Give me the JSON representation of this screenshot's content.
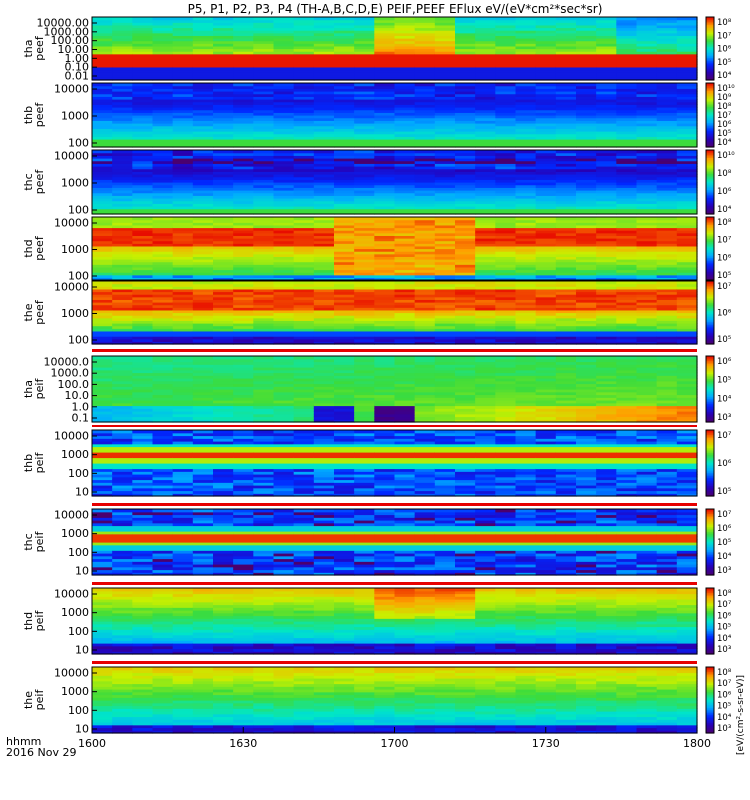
{
  "chart_data": {
    "type": "heatmap",
    "title": "P5, P1, P2, P3, P4 (TH-A,B,C,D,E) PEIF,PEEF EFlux eV/(eV*cm²*sec*sr)",
    "xlabel_line1": "hhmm",
    "xlabel_line2": "2016 Nov 29",
    "x_ticks": [
      "1600",
      "1630",
      "1700",
      "1730",
      "1800"
    ],
    "x_range": [
      1600,
      1800
    ],
    "colorbar_label": "[eV/(cm²-s-sr-eV)]",
    "colorscale": "rainbow (purple-blue-cyan-green-yellow-red)",
    "panels": [
      {
        "id": "tha-peef",
        "ylabel": [
          "tha",
          "peef"
        ],
        "yticks": [
          "10000.00",
          "1000.00",
          "100.00",
          "10.00",
          "1.00",
          "0.10",
          "0.01"
        ],
        "cbticks": [
          "10⁸",
          "10⁷",
          "10⁶",
          "10⁵",
          "10⁴"
        ],
        "pattern": "tha_e"
      },
      {
        "id": "thb-peef",
        "ylabel": [
          "thb",
          "peef"
        ],
        "yticks": [
          "10000",
          "1000",
          "100"
        ],
        "cbticks": [
          "10¹⁰",
          "10⁹",
          "10⁸",
          "10⁷",
          "10⁶",
          "10⁵",
          "10⁴"
        ],
        "pattern": "e_low"
      },
      {
        "id": "thc-peef",
        "ylabel": [
          "thc",
          "peef"
        ],
        "yticks": [
          "10000",
          "1000",
          "100"
        ],
        "cbticks": [
          "10¹⁰",
          "10⁸",
          "10⁶",
          "10⁴"
        ],
        "pattern": "e_low2"
      },
      {
        "id": "thd-peef",
        "ylabel": [
          "thd",
          "peef"
        ],
        "yticks": [
          "10000",
          "1000",
          "100"
        ],
        "cbticks": [
          "10⁸",
          "10⁷",
          "10⁶",
          "10⁵"
        ],
        "pattern": "thd_e"
      },
      {
        "id": "the-peef",
        "ylabel": [
          "the",
          "peef"
        ],
        "yticks": [
          "10000",
          "1000",
          "100"
        ],
        "cbticks": [
          "10⁷",
          "10⁶",
          "10⁵"
        ],
        "pattern": "the_e"
      },
      {
        "id": "tha-peif",
        "ylabel": [
          "tha",
          "peif"
        ],
        "yticks": [
          "10000.0",
          "1000.0",
          "100.0",
          "10.0",
          "1.0",
          "0.1"
        ],
        "cbticks": [
          "10⁶",
          "10⁵",
          "10⁴",
          "10³"
        ],
        "pattern": "tha_i"
      },
      {
        "id": "thb-peif",
        "ylabel": [
          "thb",
          "peif"
        ],
        "yticks": [
          "10000",
          "1000",
          "100",
          "10"
        ],
        "cbticks": [
          "10⁷",
          "10⁶",
          "10⁵"
        ],
        "pattern": "i_band"
      },
      {
        "id": "thc-peif",
        "ylabel": [
          "thc",
          "peif"
        ],
        "yticks": [
          "10000",
          "1000",
          "100",
          "10"
        ],
        "cbticks": [
          "10⁷",
          "10⁶",
          "10⁵",
          "10⁴",
          "10³"
        ],
        "pattern": "i_band2"
      },
      {
        "id": "thd-peif",
        "ylabel": [
          "thd",
          "peif"
        ],
        "yticks": [
          "10000",
          "1000",
          "100",
          "10"
        ],
        "cbticks": [
          "10⁸",
          "10⁷",
          "10⁶",
          "10⁵",
          "10⁴",
          "10³"
        ],
        "pattern": "thd_i"
      },
      {
        "id": "the-peif",
        "ylabel": [
          "the",
          "peif"
        ],
        "yticks": [
          "10000",
          "1000",
          "100",
          "10"
        ],
        "cbticks": [
          "10⁸",
          "10⁷",
          "10⁶",
          "10⁵",
          "10⁴",
          "10³"
        ],
        "pattern": "the_i"
      }
    ]
  }
}
